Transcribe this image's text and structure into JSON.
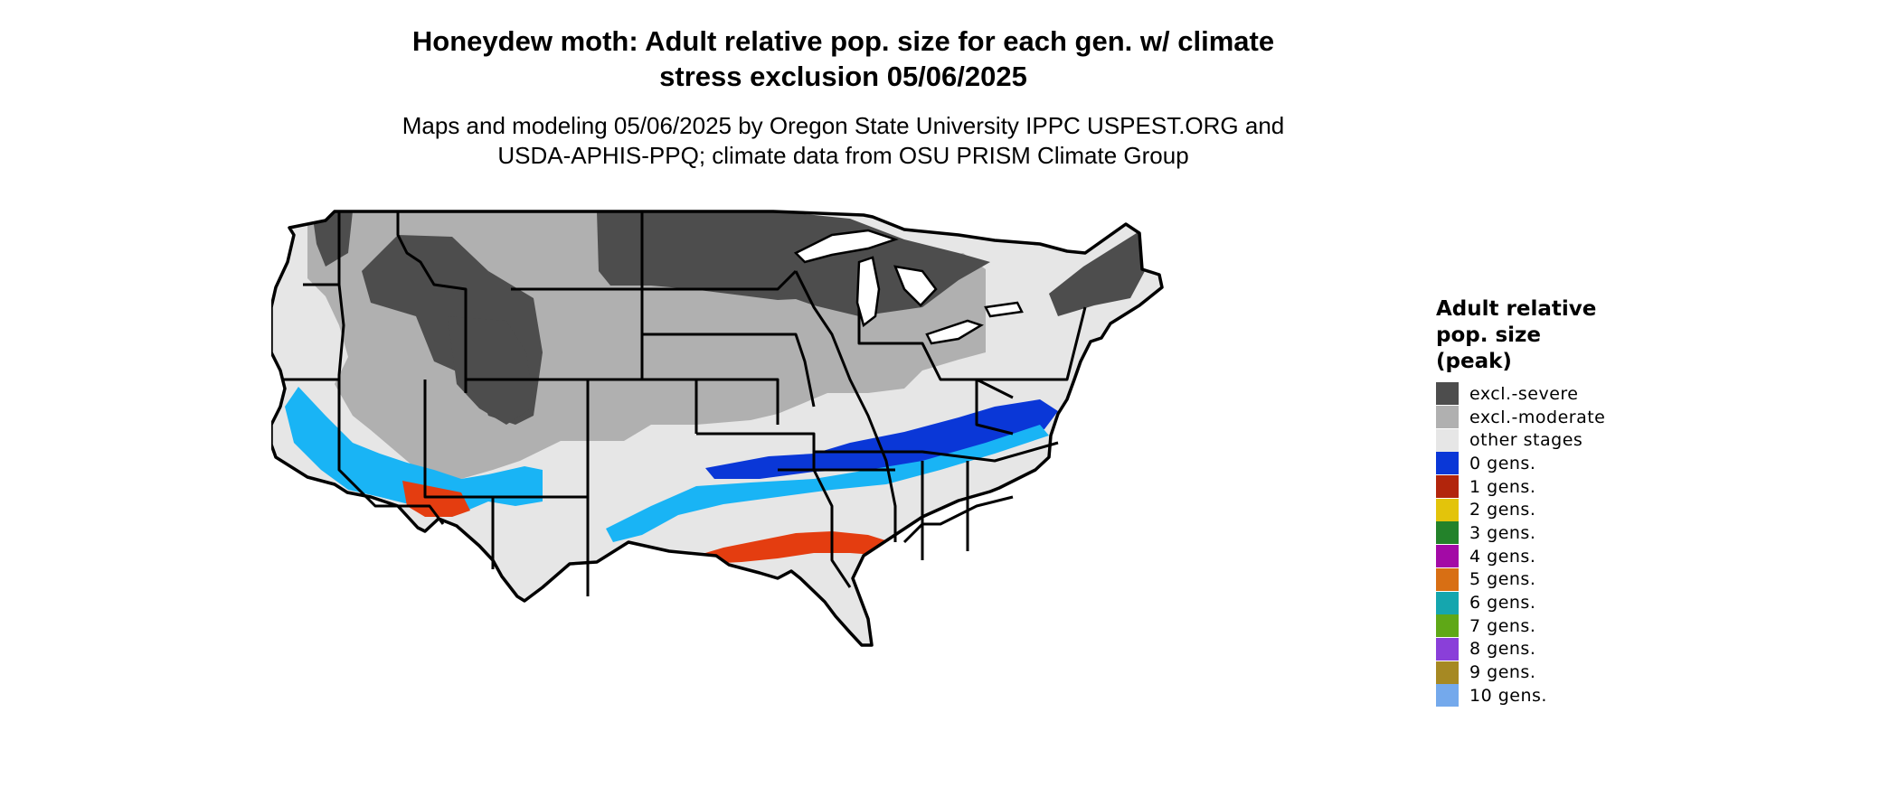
{
  "title_line1": "Honeydew moth: Adult relative pop. size for each gen. w/ climate",
  "title_line2": "stress exclusion 05/06/2025",
  "subtitle_line1": "Maps and modeling 05/06/2025 by Oregon State University IPPC USPEST.ORG and",
  "subtitle_line2": "USDA-APHIS-PPQ; climate data from OSU PRISM Climate Group",
  "legend": {
    "title_lines": [
      "Adult relative",
      "pop. size",
      "(peak)"
    ],
    "items": [
      {
        "label": "excl.-severe",
        "color": "#4d4d4d"
      },
      {
        "label": "excl.-moderate",
        "color": "#b0b0b0"
      },
      {
        "label": "other stages",
        "color": "#e6e6e6"
      },
      {
        "label": "0 gens.",
        "color": "#0a37d7"
      },
      {
        "label": "1 gens.",
        "color": "#b2250c"
      },
      {
        "label": "2 gens.",
        "color": "#e3c40b"
      },
      {
        "label": "3 gens.",
        "color": "#23822a"
      },
      {
        "label": "4 gens.",
        "color": "#a30aa6"
      },
      {
        "label": "5 gens.",
        "color": "#d86f14"
      },
      {
        "label": "6 gens.",
        "color": "#15a6ae"
      },
      {
        "label": "7 gens.",
        "color": "#5fa817"
      },
      {
        "label": "8 gens.",
        "color": "#8a3fd9"
      },
      {
        "label": "9 gens.",
        "color": "#a68923"
      },
      {
        "label": "10 gens.",
        "color": "#74a9ec"
      }
    ]
  },
  "map_colors": {
    "orange_red": "#e43d10",
    "light_blue": "#19b4f5",
    "border": "#000000"
  }
}
